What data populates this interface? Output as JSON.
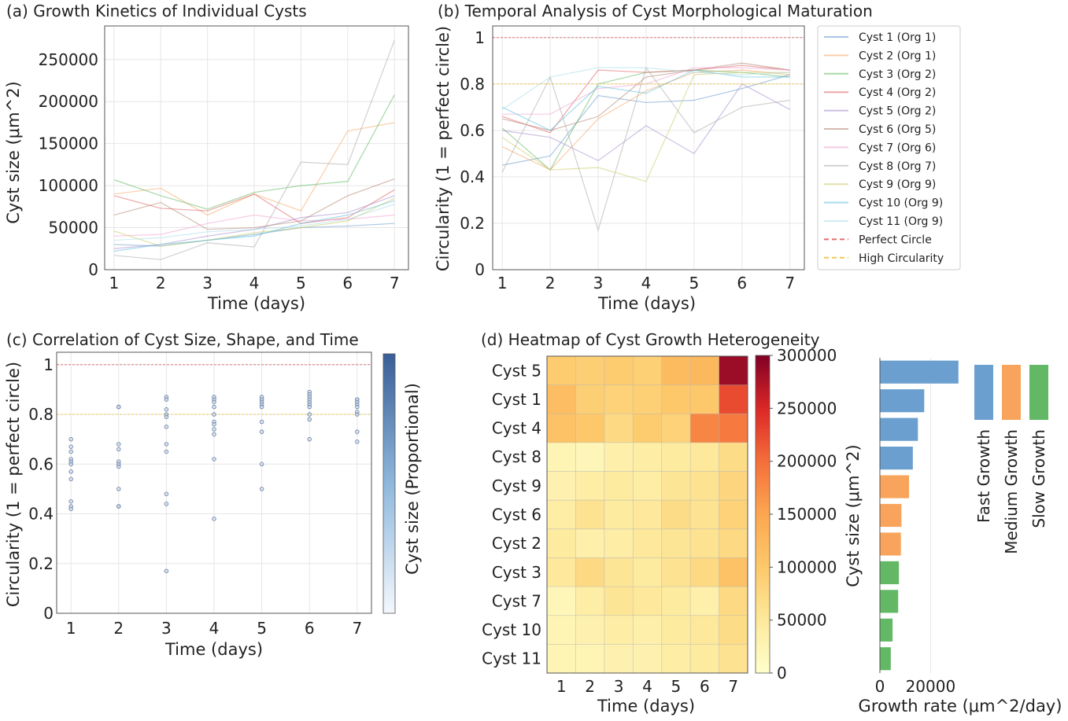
{
  "chart_data": [
    {
      "id": "a",
      "type": "line",
      "title": "(a) Growth Kinetics of Individual Cysts",
      "xlabel": "Time (days)",
      "ylabel": "Cyst size (μm^2)",
      "x": [
        1,
        2,
        3,
        4,
        5,
        6,
        7
      ],
      "xlim": [
        0.8,
        7.3
      ],
      "ylim": [
        0,
        290000
      ],
      "yticks": [
        0,
        50000,
        100000,
        150000,
        200000,
        250000
      ],
      "grid": true,
      "series": [
        {
          "name": "Cyst 1 (Org 1)",
          "color": "#6699cc",
          "values": [
            30000,
            28000,
            35000,
            42000,
            50000,
            52000,
            55000
          ]
        },
        {
          "name": "Cyst 2 (Org 1)",
          "color": "#f4a460",
          "values": [
            90000,
            97000,
            65000,
            90000,
            70000,
            165000,
            175000
          ]
        },
        {
          "name": "Cyst 3 (Org 2)",
          "color": "#5cb85c",
          "values": [
            107000,
            88000,
            72000,
            92000,
            100000,
            105000,
            208000
          ]
        },
        {
          "name": "Cyst 4 (Org 2)",
          "color": "#e05c5c",
          "values": [
            88000,
            73000,
            70000,
            90000,
            55000,
            62000,
            95000
          ]
        },
        {
          "name": "Cyst 5 (Org 2)",
          "color": "#a68bcc",
          "values": [
            25000,
            30000,
            40000,
            48000,
            62000,
            68000,
            88000
          ]
        },
        {
          "name": "Cyst 6 (Org 5)",
          "color": "#b08470",
          "values": [
            65000,
            80000,
            48000,
            50000,
            58000,
            88000,
            108000
          ]
        },
        {
          "name": "Cyst 7 (Org 6)",
          "color": "#f0a0d0",
          "values": [
            40000,
            42000,
            55000,
            65000,
            58000,
            60000,
            65000
          ]
        },
        {
          "name": "Cyst 8 (Org 7)",
          "color": "#aaaaaa",
          "values": [
            17000,
            12000,
            32000,
            27000,
            128000,
            125000,
            273000
          ]
        },
        {
          "name": "Cyst 9 (Org 9)",
          "color": "#c8c860",
          "values": [
            46000,
            28000,
            35000,
            44000,
            50000,
            58000,
            85000
          ]
        },
        {
          "name": "Cyst 10 (Org 9)",
          "color": "#5bc0de",
          "values": [
            22000,
            30000,
            35000,
            40000,
            55000,
            65000,
            82000
          ]
        },
        {
          "name": "Cyst 11 (Org 9)",
          "color": "#a8dce8",
          "values": [
            35000,
            38000,
            45000,
            48000,
            52000,
            60000,
            78000
          ]
        }
      ]
    },
    {
      "id": "b",
      "type": "line",
      "title": "(b) Temporal Analysis of Cyst Morphological Maturation",
      "xlabel": "Time (days)",
      "ylabel": "Circularity (1 = perfect circle)",
      "x": [
        1,
        2,
        3,
        4,
        5,
        6,
        7
      ],
      "xlim": [
        0.8,
        7.3
      ],
      "ylim": [
        0,
        1.05
      ],
      "yticks": [
        0,
        0.2,
        0.4,
        0.6,
        0.8,
        1
      ],
      "grid": true,
      "reference_lines": [
        {
          "name": "Perfect Circle",
          "value": 1.0,
          "color": "#e05c5c"
        },
        {
          "name": "High Circularity",
          "value": 0.8,
          "color": "#f0c040"
        }
      ],
      "series": [
        {
          "name": "Cyst 1 (Org 1)",
          "color": "#6699cc",
          "values": [
            0.45,
            0.49,
            0.75,
            0.72,
            0.73,
            0.78,
            0.84
          ]
        },
        {
          "name": "Cyst 2 (Org 1)",
          "color": "#f4a460",
          "values": [
            0.53,
            0.43,
            0.65,
            0.77,
            0.85,
            0.86,
            0.84
          ]
        },
        {
          "name": "Cyst 3 (Org 2)",
          "color": "#5cb85c",
          "values": [
            0.61,
            0.43,
            0.8,
            0.85,
            0.86,
            0.85,
            0.83
          ]
        },
        {
          "name": "Cyst 4 (Org 2)",
          "color": "#e05c5c",
          "values": [
            0.66,
            0.59,
            0.86,
            0.85,
            0.86,
            0.88,
            0.86
          ]
        },
        {
          "name": "Cyst 5 (Org 2)",
          "color": "#a68bcc",
          "values": [
            0.6,
            0.57,
            0.47,
            0.62,
            0.5,
            0.8,
            0.69
          ]
        },
        {
          "name": "Cyst 6 (Org 5)",
          "color": "#b08470",
          "values": [
            0.65,
            0.6,
            0.66,
            0.83,
            0.86,
            0.89,
            0.86
          ]
        },
        {
          "name": "Cyst 7 (Org 6)",
          "color": "#f0a0d0",
          "values": [
            0.67,
            0.67,
            0.78,
            0.8,
            0.87,
            0.87,
            0.86
          ]
        },
        {
          "name": "Cyst 8 (Org 7)",
          "color": "#aaaaaa",
          "values": [
            0.42,
            0.83,
            0.17,
            0.87,
            0.59,
            0.7,
            0.73
          ]
        },
        {
          "name": "Cyst 9 (Org 9)",
          "color": "#c8c860",
          "values": [
            0.57,
            0.43,
            0.44,
            0.38,
            0.84,
            0.85,
            0.85
          ]
        },
        {
          "name": "Cyst 10 (Org 9)",
          "color": "#5bc0de",
          "values": [
            0.7,
            0.6,
            0.79,
            0.76,
            0.86,
            0.83,
            0.83
          ]
        },
        {
          "name": "Cyst 11 (Org 9)",
          "color": "#a8dce8",
          "values": [
            0.69,
            0.83,
            0.87,
            0.87,
            0.85,
            0.84,
            0.85
          ]
        }
      ]
    },
    {
      "id": "c",
      "type": "scatter",
      "title": "(c) Correlation of Cyst Size, Shape, and Time",
      "xlabel": "Time (days)",
      "ylabel": "Circularity (1 = perfect circle)",
      "colorbar_label": "Cyst size (Proportional)",
      "xlim": [
        0.7,
        7.3
      ],
      "ylim": [
        0,
        1.05
      ],
      "xticks": [
        1,
        2,
        3,
        4,
        5,
        6,
        7
      ],
      "yticks": [
        0,
        0.2,
        0.4,
        0.6,
        0.8,
        1
      ],
      "grid": true,
      "reference_lines": [
        {
          "value": 1.0,
          "color": "#e05c5c"
        },
        {
          "value": 0.8,
          "color": "#f0c040"
        }
      ],
      "points": [
        {
          "x": 1,
          "y": 0.7
        },
        {
          "x": 1,
          "y": 0.67
        },
        {
          "x": 1,
          "y": 0.65
        },
        {
          "x": 1,
          "y": 0.62
        },
        {
          "x": 1,
          "y": 0.61
        },
        {
          "x": 1,
          "y": 0.6
        },
        {
          "x": 1,
          "y": 0.57
        },
        {
          "x": 1,
          "y": 0.54
        },
        {
          "x": 1,
          "y": 0.45
        },
        {
          "x": 1,
          "y": 0.43
        },
        {
          "x": 1,
          "y": 0.42
        },
        {
          "x": 2,
          "y": 0.83
        },
        {
          "x": 2,
          "y": 0.83
        },
        {
          "x": 2,
          "y": 0.68
        },
        {
          "x": 2,
          "y": 0.66
        },
        {
          "x": 2,
          "y": 0.61
        },
        {
          "x": 2,
          "y": 0.6
        },
        {
          "x": 2,
          "y": 0.59
        },
        {
          "x": 2,
          "y": 0.5
        },
        {
          "x": 2,
          "y": 0.43
        },
        {
          "x": 2,
          "y": 0.43
        },
        {
          "x": 3,
          "y": 0.87
        },
        {
          "x": 3,
          "y": 0.86
        },
        {
          "x": 3,
          "y": 0.82
        },
        {
          "x": 3,
          "y": 0.8
        },
        {
          "x": 3,
          "y": 0.79
        },
        {
          "x": 3,
          "y": 0.75
        },
        {
          "x": 3,
          "y": 0.68
        },
        {
          "x": 3,
          "y": 0.65
        },
        {
          "x": 3,
          "y": 0.48
        },
        {
          "x": 3,
          "y": 0.44
        },
        {
          "x": 3,
          "y": 0.17
        },
        {
          "x": 4,
          "y": 0.87
        },
        {
          "x": 4,
          "y": 0.86
        },
        {
          "x": 4,
          "y": 0.85
        },
        {
          "x": 4,
          "y": 0.83
        },
        {
          "x": 4,
          "y": 0.8
        },
        {
          "x": 4,
          "y": 0.77
        },
        {
          "x": 4,
          "y": 0.76
        },
        {
          "x": 4,
          "y": 0.74
        },
        {
          "x": 4,
          "y": 0.72
        },
        {
          "x": 4,
          "y": 0.62
        },
        {
          "x": 4,
          "y": 0.38
        },
        {
          "x": 5,
          "y": 0.87
        },
        {
          "x": 5,
          "y": 0.86
        },
        {
          "x": 5,
          "y": 0.86
        },
        {
          "x": 5,
          "y": 0.85
        },
        {
          "x": 5,
          "y": 0.84
        },
        {
          "x": 5,
          "y": 0.83
        },
        {
          "x": 5,
          "y": 0.77
        },
        {
          "x": 5,
          "y": 0.73
        },
        {
          "x": 5,
          "y": 0.6
        },
        {
          "x": 5,
          "y": 0.5
        },
        {
          "x": 6,
          "y": 0.89
        },
        {
          "x": 6,
          "y": 0.88
        },
        {
          "x": 6,
          "y": 0.87
        },
        {
          "x": 6,
          "y": 0.86
        },
        {
          "x": 6,
          "y": 0.85
        },
        {
          "x": 6,
          "y": 0.84
        },
        {
          "x": 6,
          "y": 0.83
        },
        {
          "x": 6,
          "y": 0.8
        },
        {
          "x": 6,
          "y": 0.78
        },
        {
          "x": 6,
          "y": 0.7
        },
        {
          "x": 7,
          "y": 0.86
        },
        {
          "x": 7,
          "y": 0.86
        },
        {
          "x": 7,
          "y": 0.85
        },
        {
          "x": 7,
          "y": 0.84
        },
        {
          "x": 7,
          "y": 0.83
        },
        {
          "x": 7,
          "y": 0.81
        },
        {
          "x": 7,
          "y": 0.8
        },
        {
          "x": 7,
          "y": 0.73
        },
        {
          "x": 7,
          "y": 0.69
        }
      ]
    },
    {
      "id": "d",
      "type": "heatmap",
      "title": "(d) Heatmap of Cyst Growth Heterogeneity",
      "xlabel": "Time (days)",
      "colorbar_label": "Cyst size (μm^2)",
      "colorbar_range": [
        0,
        300000
      ],
      "colorbar_ticks": [
        0,
        50000,
        100000,
        150000,
        200000,
        250000,
        300000
      ],
      "x": [
        1,
        2,
        3,
        4,
        5,
        6,
        7
      ],
      "rows": [
        "Cyst 5",
        "Cyst 1",
        "Cyst 4",
        "Cyst 8",
        "Cyst 9",
        "Cyst 6",
        "Cyst 2",
        "Cyst 3",
        "Cyst 7",
        "Cyst 10",
        "Cyst 11"
      ],
      "values": [
        [
          95000,
          90000,
          95000,
          88000,
          120000,
          125000,
          285000
        ],
        [
          115000,
          90000,
          85000,
          88000,
          100000,
          100000,
          225000
        ],
        [
          110000,
          100000,
          75000,
          95000,
          85000,
          180000,
          190000
        ],
        [
          25000,
          20000,
          35000,
          40000,
          45000,
          50000,
          70000
        ],
        [
          30000,
          40000,
          45000,
          40000,
          55000,
          60000,
          80000
        ],
        [
          40000,
          60000,
          45000,
          50000,
          70000,
          60000,
          85000
        ],
        [
          45000,
          35000,
          40000,
          50000,
          55000,
          60000,
          75000
        ],
        [
          50000,
          75000,
          55000,
          45000,
          60000,
          75000,
          110000
        ],
        [
          20000,
          40000,
          55000,
          50000,
          45000,
          35000,
          75000
        ],
        [
          25000,
          30000,
          40000,
          35000,
          45000,
          50000,
          70000
        ],
        [
          25000,
          25000,
          30000,
          30000,
          40000,
          45000,
          60000
        ]
      ]
    },
    {
      "id": "e",
      "type": "bar",
      "orientation": "horizontal",
      "xlabel": "Growth rate (μm^2/day)",
      "xlim": [
        0,
        32000
      ],
      "xticks": [
        0,
        20000
      ],
      "categories": [
        "Cyst 5",
        "Cyst 1",
        "Cyst 4",
        "Cyst 8",
        "Cyst 9",
        "Cyst 6",
        "Cyst 2",
        "Cyst 3",
        "Cyst 7",
        "Cyst 10",
        "Cyst 11"
      ],
      "values": [
        31000,
        17500,
        15000,
        13000,
        11500,
        8500,
        8300,
        7500,
        7200,
        5000,
        4300
      ],
      "groups": [
        "Fast Growth",
        "Fast Growth",
        "Fast Growth",
        "Fast Growth",
        "Medium Growth",
        "Medium Growth",
        "Medium Growth",
        "Slow Growth",
        "Slow Growth",
        "Slow Growth",
        "Slow Growth"
      ],
      "legend": [
        {
          "name": "Fast Growth",
          "color": "#6a9fcf"
        },
        {
          "name": "Medium Growth",
          "color": "#f8a45c"
        },
        {
          "name": "Slow Growth",
          "color": "#62b865"
        }
      ]
    }
  ]
}
